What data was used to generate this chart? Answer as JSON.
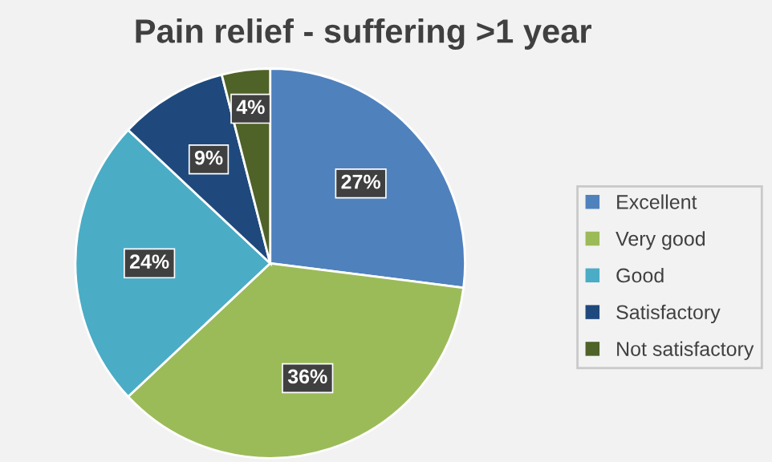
{
  "chart_data": {
    "type": "pie",
    "title": "Pain relief - suffering >1 year",
    "categories": [
      "Excellent",
      "Very good",
      "Good",
      "Satisfactory",
      "Not satisfactory"
    ],
    "values": [
      27,
      36,
      24,
      9,
      4
    ],
    "colors": [
      "#4f81bd",
      "#9bbb59",
      "#4bacc6",
      "#1f497d",
      "#4f6228"
    ],
    "value_labels": [
      "27%",
      "36%",
      "24%",
      "9%",
      "4%"
    ],
    "legend": "right"
  }
}
